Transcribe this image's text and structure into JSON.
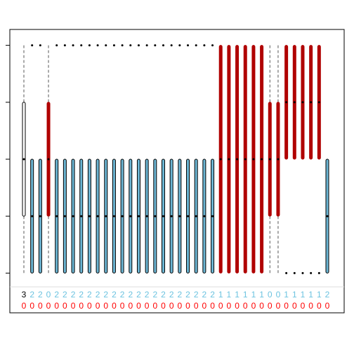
{
  "chart_data": {
    "type": "boxplot",
    "ylim": [
      -0.18,
      4.18
    ],
    "yticks": [
      0,
      1,
      2,
      3,
      4
    ],
    "boxes": [
      {
        "low": 0,
        "q1": 1,
        "median": 2,
        "q3": 3,
        "high": 4,
        "outliers": [],
        "color": "#ffffff"
      },
      {
        "low": 0,
        "q1": 0,
        "median": 1,
        "q3": 2,
        "high": 2,
        "outliers": [
          4
        ],
        "color": "#6cb6d4"
      },
      {
        "low": 0,
        "q1": 0,
        "median": 1,
        "q3": 2,
        "high": 2,
        "outliers": [
          4
        ],
        "color": "#6cb6d4"
      },
      {
        "low": 0,
        "q1": 1,
        "median": 2,
        "q3": 3,
        "high": 4,
        "outliers": [],
        "color": "#b00000"
      },
      {
        "low": 0,
        "q1": 0,
        "median": 1,
        "q3": 2,
        "high": 2,
        "outliers": [
          4
        ],
        "color": "#6cb6d4"
      },
      {
        "low": 0,
        "q1": 0,
        "median": 1,
        "q3": 2,
        "high": 2,
        "outliers": [
          4
        ],
        "color": "#6cb6d4"
      },
      {
        "low": 0,
        "q1": 0,
        "median": 1,
        "q3": 2,
        "high": 2,
        "outliers": [
          4
        ],
        "color": "#6cb6d4"
      },
      {
        "low": 0,
        "q1": 0,
        "median": 1,
        "q3": 2,
        "high": 2,
        "outliers": [
          4
        ],
        "color": "#6cb6d4"
      },
      {
        "low": 0,
        "q1": 0,
        "median": 1,
        "q3": 2,
        "high": 2,
        "outliers": [
          4
        ],
        "color": "#6cb6d4"
      },
      {
        "low": 0,
        "q1": 0,
        "median": 1,
        "q3": 2,
        "high": 2,
        "outliers": [
          4
        ],
        "color": "#6cb6d4"
      },
      {
        "low": 0,
        "q1": 0,
        "median": 1,
        "q3": 2,
        "high": 2,
        "outliers": [
          4
        ],
        "color": "#6cb6d4"
      },
      {
        "low": 0,
        "q1": 0,
        "median": 1,
        "q3": 2,
        "high": 2,
        "outliers": [
          4
        ],
        "color": "#6cb6d4"
      },
      {
        "low": 0,
        "q1": 0,
        "median": 1,
        "q3": 2,
        "high": 2,
        "outliers": [
          4
        ],
        "color": "#6cb6d4"
      },
      {
        "low": 0,
        "q1": 0,
        "median": 1,
        "q3": 2,
        "high": 2,
        "outliers": [
          4
        ],
        "color": "#6cb6d4"
      },
      {
        "low": 0,
        "q1": 0,
        "median": 1,
        "q3": 2,
        "high": 2,
        "outliers": [
          4
        ],
        "color": "#6cb6d4"
      },
      {
        "low": 0,
        "q1": 0,
        "median": 1,
        "q3": 2,
        "high": 2,
        "outliers": [
          4
        ],
        "color": "#6cb6d4"
      },
      {
        "low": 0,
        "q1": 0,
        "median": 1,
        "q3": 2,
        "high": 2,
        "outliers": [
          4
        ],
        "color": "#6cb6d4"
      },
      {
        "low": 0,
        "q1": 0,
        "median": 1,
        "q3": 2,
        "high": 2,
        "outliers": [
          4
        ],
        "color": "#6cb6d4"
      },
      {
        "low": 0,
        "q1": 0,
        "median": 1,
        "q3": 2,
        "high": 2,
        "outliers": [
          4
        ],
        "color": "#6cb6d4"
      },
      {
        "low": 0,
        "q1": 0,
        "median": 1,
        "q3": 2,
        "high": 2,
        "outliers": [
          4
        ],
        "color": "#6cb6d4"
      },
      {
        "low": 0,
        "q1": 0,
        "median": 1,
        "q3": 2,
        "high": 2,
        "outliers": [
          4
        ],
        "color": "#6cb6d4"
      },
      {
        "low": 0,
        "q1": 0,
        "median": 1,
        "q3": 2,
        "high": 2,
        "outliers": [
          4
        ],
        "color": "#6cb6d4"
      },
      {
        "low": 0,
        "q1": 0,
        "median": 1,
        "q3": 2,
        "high": 2,
        "outliers": [
          4
        ],
        "color": "#6cb6d4"
      },
      {
        "low": 0,
        "q1": 0,
        "median": 1,
        "q3": 2,
        "high": 2,
        "outliers": [
          4
        ],
        "color": "#6cb6d4"
      },
      {
        "low": 0,
        "q1": 0,
        "median": 2,
        "q3": 4,
        "high": 4,
        "outliers": [],
        "color": "#b00000"
      },
      {
        "low": 0,
        "q1": 0,
        "median": 2,
        "q3": 4,
        "high": 4,
        "outliers": [],
        "color": "#b00000"
      },
      {
        "low": 0,
        "q1": 0,
        "median": 2,
        "q3": 4,
        "high": 4,
        "outliers": [],
        "color": "#b00000"
      },
      {
        "low": 0,
        "q1": 0,
        "median": 2,
        "q3": 4,
        "high": 4,
        "outliers": [],
        "color": "#b00000"
      },
      {
        "low": 0,
        "q1": 0,
        "median": 2,
        "q3": 4,
        "high": 4,
        "outliers": [],
        "color": "#b00000"
      },
      {
        "low": 0,
        "q1": 0,
        "median": 2,
        "q3": 4,
        "high": 4,
        "outliers": [],
        "color": "#b00000"
      },
      {
        "low": 0,
        "q1": 1,
        "median": 2,
        "q3": 3,
        "high": 4,
        "outliers": [],
        "color": "#b00000"
      },
      {
        "low": 0,
        "q1": 1,
        "median": 2,
        "q3": 3,
        "high": 4,
        "outliers": [],
        "color": "#b00000"
      },
      {
        "low": 2,
        "q1": 2,
        "median": 3,
        "q3": 4,
        "high": 4,
        "outliers": [
          0
        ],
        "color": "#b00000"
      },
      {
        "low": 2,
        "q1": 2,
        "median": 3,
        "q3": 4,
        "high": 4,
        "outliers": [
          0
        ],
        "color": "#b00000"
      },
      {
        "low": 2,
        "q1": 2,
        "median": 3,
        "q3": 4,
        "high": 4,
        "outliers": [
          0
        ],
        "color": "#b00000"
      },
      {
        "low": 2,
        "q1": 2,
        "median": 3,
        "q3": 4,
        "high": 4,
        "outliers": [
          0
        ],
        "color": "#b00000"
      },
      {
        "low": 2,
        "q1": 2,
        "median": 3,
        "q3": 4,
        "high": 4,
        "outliers": [
          0
        ],
        "color": "#b00000"
      },
      {
        "low": 0,
        "q1": 0,
        "median": 1,
        "q3": 2,
        "high": 2,
        "outliers": [],
        "color": "#6cb6d4"
      }
    ],
    "top_labels": [
      "3",
      "2",
      "2",
      "0",
      "2",
      "2",
      "2",
      "2",
      "2",
      "2",
      "2",
      "2",
      "2",
      "2",
      "2",
      "2",
      "2",
      "2",
      "2",
      "2",
      "2",
      "2",
      "2",
      "2",
      "1",
      "1",
      "1",
      "1",
      "1",
      "1",
      "0",
      "0",
      "1",
      "1",
      "1",
      "1",
      "1",
      "2"
    ],
    "top_label_colors": [
      "#000000",
      "#6cc3e0",
      "#6cc3e0",
      "#6cc3e0",
      "#6cc3e0",
      "#6cc3e0",
      "#6cc3e0",
      "#6cc3e0",
      "#6cc3e0",
      "#6cc3e0",
      "#6cc3e0",
      "#6cc3e0",
      "#6cc3e0",
      "#6cc3e0",
      "#6cc3e0",
      "#6cc3e0",
      "#6cc3e0",
      "#6cc3e0",
      "#6cc3e0",
      "#6cc3e0",
      "#6cc3e0",
      "#6cc3e0",
      "#6cc3e0",
      "#6cc3e0",
      "#6cc3e0",
      "#6cc3e0",
      "#6cc3e0",
      "#6cc3e0",
      "#6cc3e0",
      "#6cc3e0",
      "#6cc3e0",
      "#6cc3e0",
      "#6cc3e0",
      "#6cc3e0",
      "#6cc3e0",
      "#6cc3e0",
      "#6cc3e0",
      "#6cc3e0"
    ],
    "bottom_labels": [
      "0",
      "0",
      "0",
      "0",
      "0",
      "0",
      "0",
      "0",
      "0",
      "0",
      "0",
      "0",
      "0",
      "0",
      "0",
      "0",
      "0",
      "0",
      "0",
      "0",
      "0",
      "0",
      "0",
      "0",
      "0",
      "0",
      "0",
      "0",
      "0",
      "0",
      "0",
      "0",
      "0",
      "0",
      "0",
      "0",
      "0",
      "0"
    ],
    "bottom_label_color": "#ff0000"
  }
}
